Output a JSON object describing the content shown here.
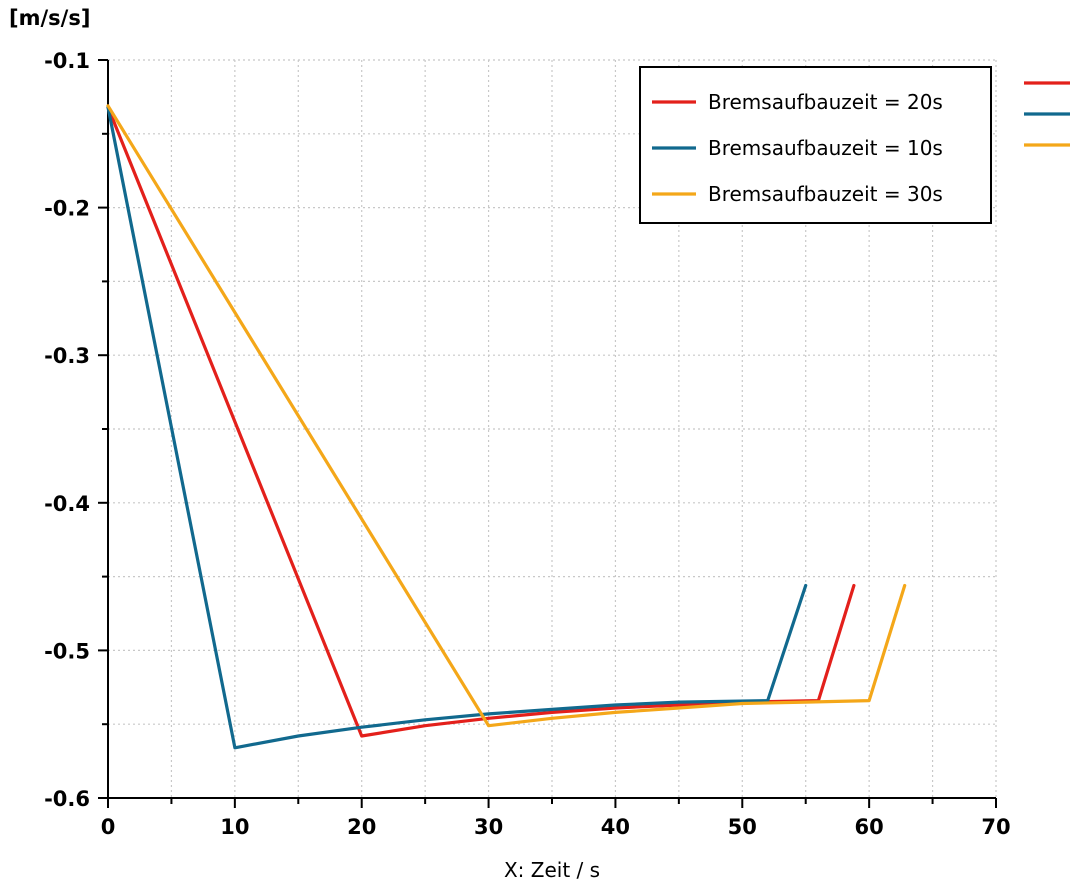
{
  "chart_data": {
    "type": "line",
    "unit_label": "[m/s/s]",
    "xlabel": "X: Zeit / s",
    "ylabel": "",
    "xlim": [
      0,
      70
    ],
    "ylim": [
      -0.6,
      -0.1
    ],
    "x_ticks": [
      0,
      10,
      20,
      30,
      40,
      50,
      60,
      70
    ],
    "x_tick_labels": [
      "0",
      "10",
      "20",
      "30",
      "40",
      "50",
      "60",
      "70"
    ],
    "y_ticks": [
      -0.6,
      -0.5,
      -0.4,
      -0.3,
      -0.2,
      -0.1
    ],
    "y_tick_labels": [
      "-0.6",
      "-0.5",
      "-0.4",
      "-0.3",
      "-0.2",
      "-0.1"
    ],
    "grid": true,
    "legend_position": "top-right",
    "series": [
      {
        "name": "Bremsaufbauzeit = 20s",
        "color": "#e3201b",
        "points": [
          [
            0,
            -0.132
          ],
          [
            20,
            -0.558
          ],
          [
            25,
            -0.551
          ],
          [
            30,
            -0.546
          ],
          [
            35,
            -0.542
          ],
          [
            40,
            -0.539
          ],
          [
            45,
            -0.537
          ],
          [
            50,
            -0.535
          ],
          [
            56,
            -0.534
          ],
          [
            58.8,
            -0.456
          ]
        ]
      },
      {
        "name": "Bremsaufbauzeit = 10s",
        "color": "#11698e",
        "points": [
          [
            0,
            -0.132
          ],
          [
            10,
            -0.566
          ],
          [
            15,
            -0.558
          ],
          [
            20,
            -0.552
          ],
          [
            25,
            -0.547
          ],
          [
            30,
            -0.543
          ],
          [
            35,
            -0.54
          ],
          [
            40,
            -0.537
          ],
          [
            45,
            -0.535
          ],
          [
            52,
            -0.534
          ],
          [
            55,
            -0.456
          ]
        ]
      },
      {
        "name": "Bremsaufbauzeit = 30s",
        "color": "#f4a719",
        "points": [
          [
            0,
            -0.131
          ],
          [
            30,
            -0.551
          ],
          [
            35,
            -0.546
          ],
          [
            40,
            -0.542
          ],
          [
            45,
            -0.539
          ],
          [
            50,
            -0.536
          ],
          [
            55,
            -0.535
          ],
          [
            60,
            -0.534
          ],
          [
            62.8,
            -0.456
          ]
        ]
      }
    ]
  }
}
